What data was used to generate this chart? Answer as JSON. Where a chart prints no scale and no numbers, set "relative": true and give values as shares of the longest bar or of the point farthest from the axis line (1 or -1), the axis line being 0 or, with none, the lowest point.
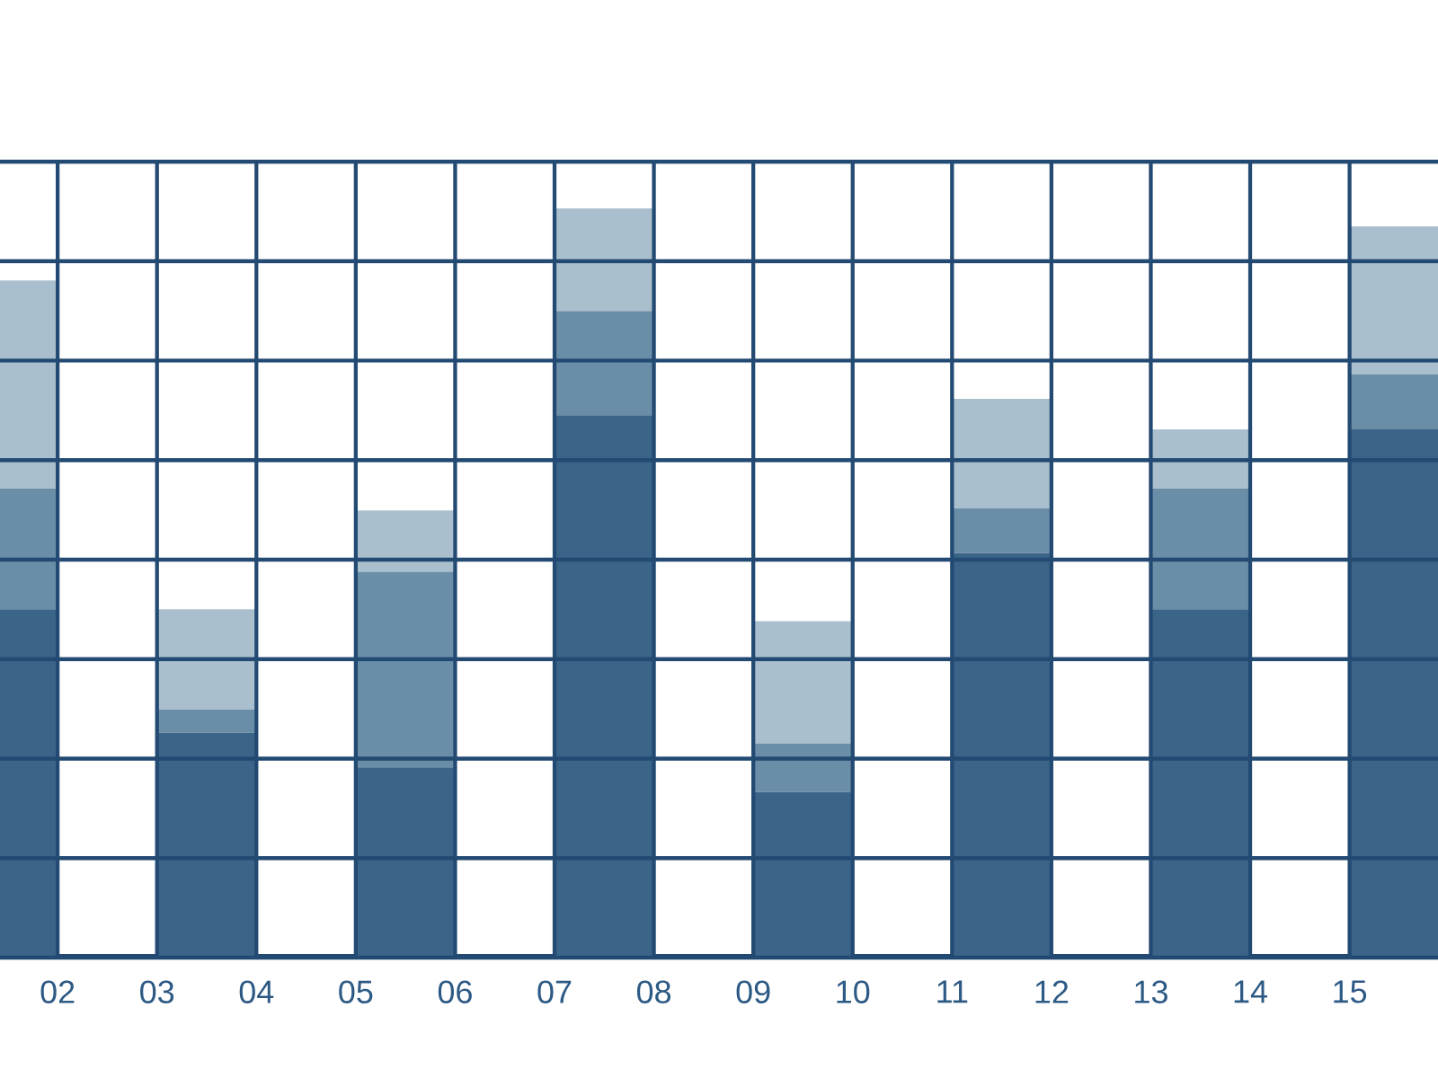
{
  "chart_data": {
    "type": "bar",
    "stacked": true,
    "relative": true,
    "grid": true,
    "x": [
      1.5,
      3.5,
      5.5,
      7.5,
      9.5,
      11.5,
      13.5,
      15.5
    ],
    "xlim": [
      1.42,
      15.89
    ],
    "xticks": [
      {
        "value": 2,
        "label": "02"
      },
      {
        "value": 3,
        "label": "03"
      },
      {
        "value": 4,
        "label": "04"
      },
      {
        "value": 5,
        "label": "05"
      },
      {
        "value": 6,
        "label": "06"
      },
      {
        "value": 7,
        "label": "07"
      },
      {
        "value": 8,
        "label": "08"
      },
      {
        "value": 9,
        "label": "09"
      },
      {
        "value": 10,
        "label": "10"
      },
      {
        "value": 11,
        "label": "11"
      },
      {
        "value": 12,
        "label": "12"
      },
      {
        "value": 13,
        "label": "13"
      },
      {
        "value": 14,
        "label": "14"
      },
      {
        "value": 15,
        "label": "15"
      }
    ],
    "series": [
      {
        "color": "#3b6489",
        "values": [
          0.465,
          0.3,
          0.254,
          0.724,
          0.221,
          0.54,
          0.465,
          0.705
        ]
      },
      {
        "color": "#6b8ea8",
        "values": [
          0.161,
          0.031,
          0.261,
          0.139,
          0.065,
          0.06,
          0.161,
          0.074
        ]
      },
      {
        "color": "#a9bfcd",
        "values": [
          0.278,
          0.134,
          0.082,
          0.137,
          0.163,
          0.146,
          0.079,
          0.197
        ]
      }
    ]
  }
}
